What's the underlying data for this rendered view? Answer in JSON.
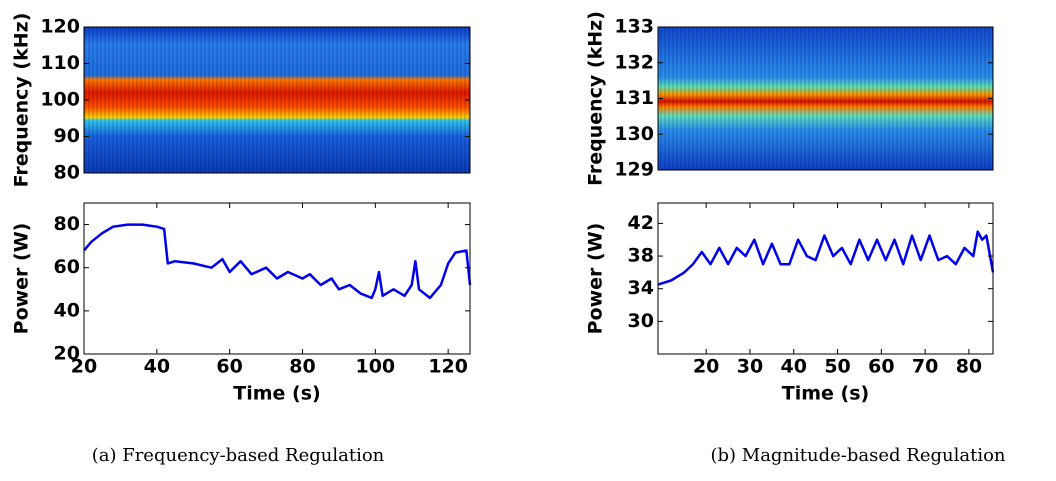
{
  "chart_data": [
    {
      "type": "spectrogram",
      "ylabel": "Frequency (kHz)",
      "xlim": [
        20,
        126
      ],
      "ylim": [
        80,
        120
      ],
      "yticks": [
        80,
        90,
        100,
        110,
        120
      ]
    },
    {
      "type": "line",
      "xlabel": "Time (s)",
      "ylabel": "Power (W)",
      "color": "#0000ee",
      "xlim": [
        20,
        126
      ],
      "ylim": [
        20,
        90
      ],
      "xticks": [
        20,
        40,
        60,
        80,
        100,
        120
      ],
      "yticks": [
        20,
        40,
        60,
        80
      ],
      "x": [
        20,
        22,
        25,
        28,
        32,
        36,
        40,
        42,
        43,
        45,
        50,
        55,
        58,
        60,
        63,
        66,
        70,
        73,
        76,
        80,
        82,
        85,
        88,
        90,
        93,
        96,
        99,
        100,
        101,
        102,
        105,
        108,
        110,
        111,
        112,
        115,
        118,
        120,
        122,
        125,
        126
      ],
      "values": [
        68,
        72,
        76,
        79,
        80,
        80,
        79,
        78,
        62,
        63,
        62,
        60,
        64,
        58,
        63,
        57,
        60,
        55,
        58,
        55,
        57,
        52,
        55,
        50,
        52,
        48,
        46,
        50,
        58,
        47,
        50,
        47,
        52,
        63,
        50,
        46,
        52,
        62,
        67,
        68,
        52
      ]
    },
    {
      "type": "spectrogram",
      "ylabel": "Frequency (kHz)",
      "xlim": [
        9,
        85.5
      ],
      "ylim": [
        129,
        133
      ],
      "yticks": [
        129,
        130,
        131,
        132,
        133
      ]
    },
    {
      "type": "line",
      "xlabel": "Time (s)",
      "ylabel": "Power (W)",
      "color": "#0000ee",
      "xlim": [
        9,
        85.5
      ],
      "ylim": [
        26,
        44.5
      ],
      "xticks": [
        20,
        30,
        40,
        50,
        60,
        70,
        80
      ],
      "yticks": [
        30,
        34,
        38,
        42
      ],
      "x": [
        9,
        12,
        15,
        17,
        19,
        21,
        23,
        25,
        27,
        29,
        31,
        33,
        35,
        37,
        39,
        41,
        43,
        45,
        47,
        49,
        51,
        53,
        55,
        57,
        59,
        61,
        63,
        65,
        67,
        69,
        71,
        73,
        75,
        77,
        79,
        81,
        82,
        83,
        84,
        85.5
      ],
      "values": [
        34.5,
        35,
        36,
        37,
        38.5,
        37,
        39,
        37,
        39,
        38,
        40,
        37,
        39.5,
        37,
        37,
        40,
        38,
        37.5,
        40.5,
        38,
        39,
        37,
        40,
        37.5,
        40,
        37.5,
        40,
        37,
        40.5,
        37.5,
        40.5,
        37.5,
        38,
        37,
        39,
        38,
        41,
        40,
        40.5,
        36
      ]
    }
  ],
  "figure": {
    "captions": [
      "(a) Frequency-based Regulation",
      "(b) Magnitude-based Regulation"
    ]
  }
}
